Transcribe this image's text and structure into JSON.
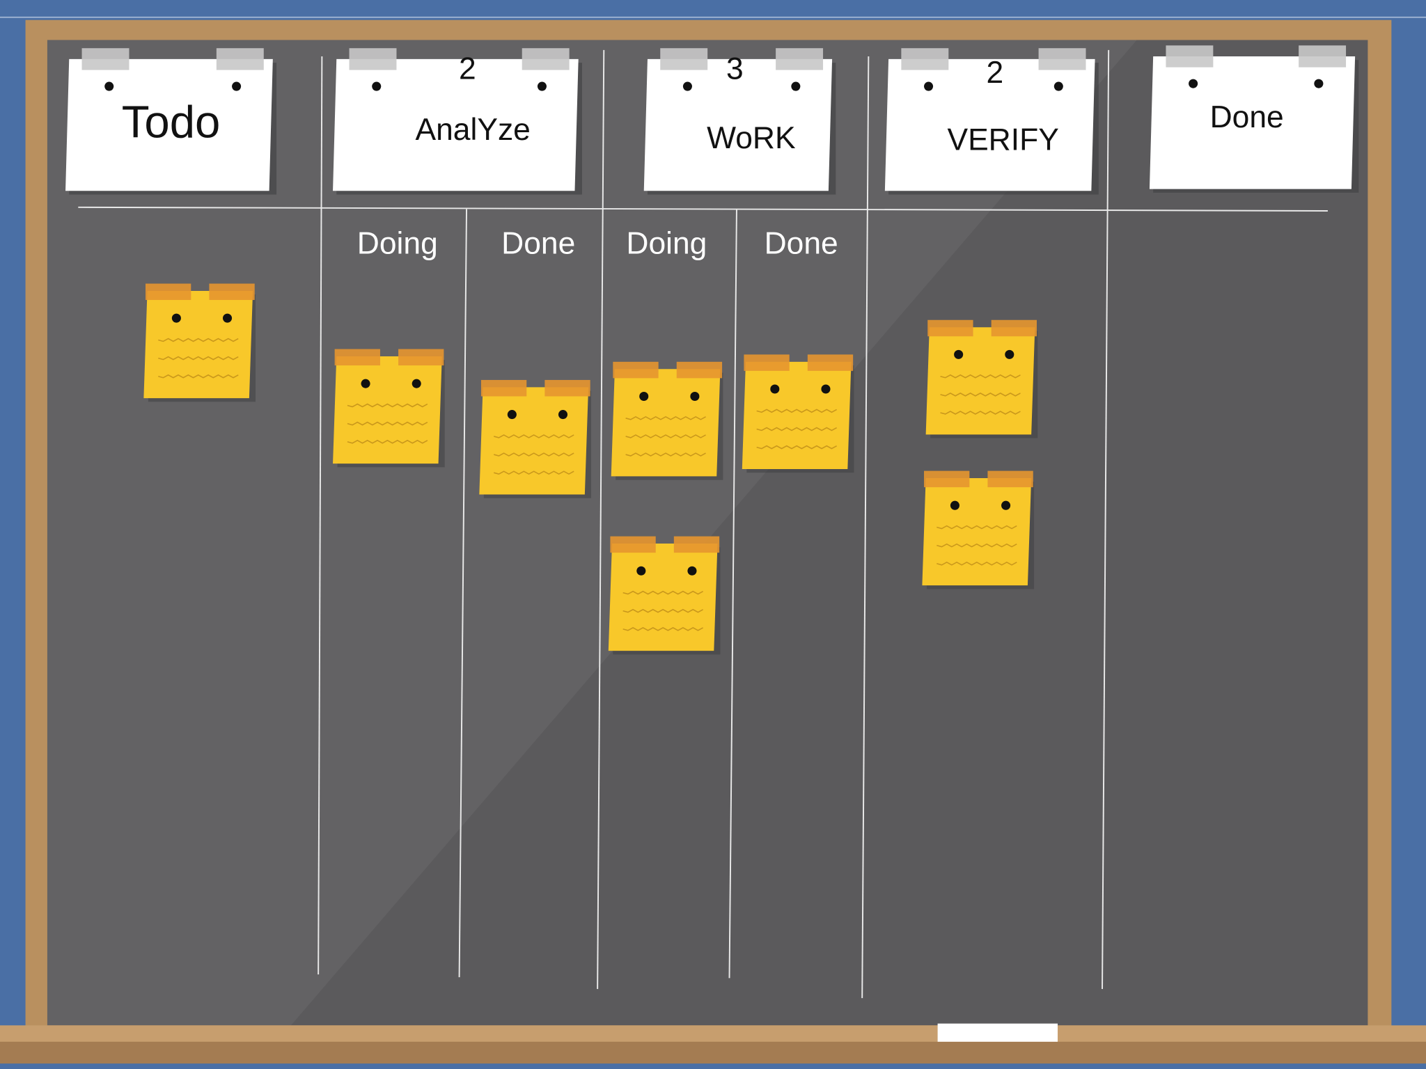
{
  "columns": [
    {
      "title": "Todo"
    },
    {
      "title": "AnalYze",
      "limit": 2,
      "subcolumns": [
        "Doing",
        "Done"
      ]
    },
    {
      "title": "WoRK",
      "limit": 3,
      "subcolumns": [
        "Doing",
        "Done"
      ]
    },
    {
      "title": "VERIFY",
      "limit": 2
    },
    {
      "title": "Done"
    }
  ]
}
